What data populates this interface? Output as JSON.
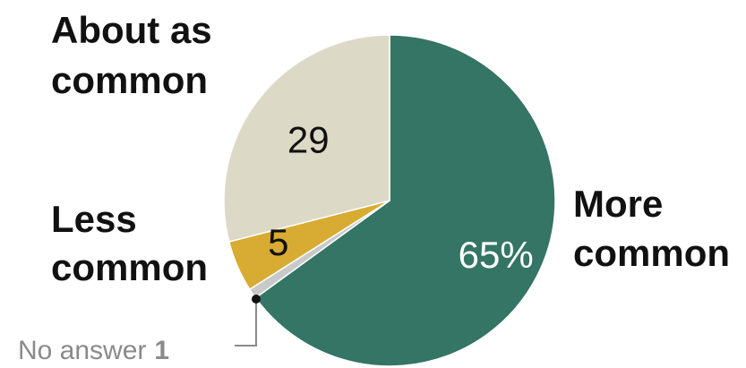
{
  "chart_data": {
    "type": "pie",
    "start_angle_deg": 0,
    "direction": "clockwise",
    "slices": [
      {
        "name": "More common",
        "label_lines": [
          "More",
          "common"
        ],
        "value": 65,
        "value_label": "65%",
        "color": "#347565",
        "value_text_color": "#ffffff"
      },
      {
        "name": "No answer",
        "label_lines": [
          "No answer"
        ],
        "value": 1,
        "value_label": "1",
        "color": "#c9c9c9",
        "value_text_color": "#8a8a8a"
      },
      {
        "name": "Less common",
        "label_lines": [
          "Less",
          "common"
        ],
        "value": 5,
        "value_label": "5",
        "color": "#d8ab32",
        "value_text_color": "#111111"
      },
      {
        "name": "About as common",
        "label_lines": [
          "About as",
          "common"
        ],
        "value": 29,
        "value_label": "29",
        "color": "#ddd9c7",
        "value_text_color": "#111111"
      }
    ]
  }
}
